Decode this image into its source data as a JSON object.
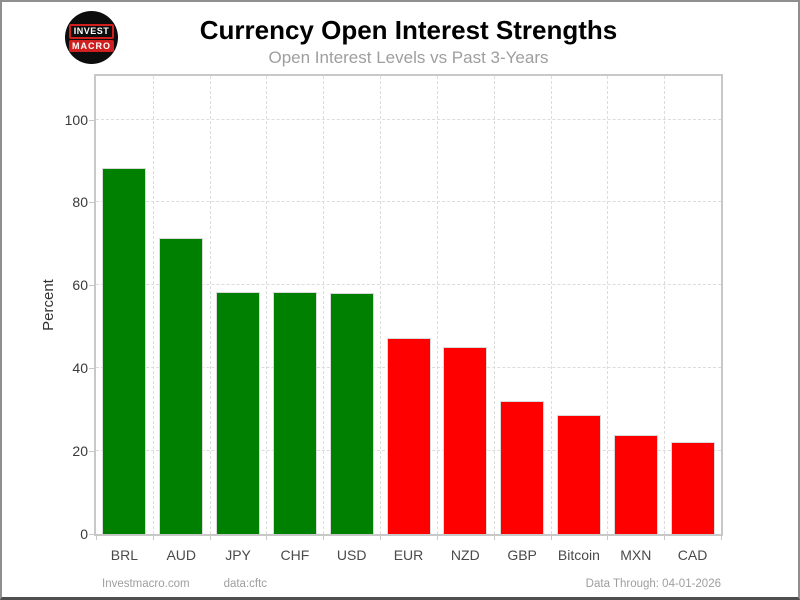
{
  "header": {
    "title": "Currency Open Interest Strengths",
    "subtitle": "Open Interest Levels vs Past 3-Years",
    "logo": {
      "line1": "INVEST",
      "line2": "MACRO"
    }
  },
  "chart_data": {
    "type": "bar",
    "title": "Currency Open Interest Strengths",
    "subtitle": "Open Interest Levels vs Past 3-Years",
    "categories": [
      "BRL",
      "AUD",
      "JPY",
      "CHF",
      "USD",
      "EUR",
      "NZD",
      "GBP",
      "Bitcoin",
      "MXN",
      "CAD"
    ],
    "values": [
      88.4,
      71.3,
      58.5,
      58.5,
      58.2,
      47.3,
      45.2,
      32.2,
      28.8,
      23.9,
      22.1
    ],
    "bar_colors": [
      "#008000",
      "#008000",
      "#008000",
      "#008000",
      "#008000",
      "#fe0000",
      "#fe0000",
      "#fe0000",
      "#fe0000",
      "#fe0000",
      "#fe0000"
    ],
    "xlabel": "",
    "ylabel": "Percent",
    "yticks": [
      0,
      20,
      40,
      60,
      80,
      100
    ],
    "ylim": [
      0,
      110.5
    ],
    "grid": "dashed",
    "legend_position": "none"
  },
  "colors": {
    "bar_green": "#008000",
    "bar_red": "#fe0000",
    "grid": "#dcdcdc",
    "plot_border": "#c8c8c8",
    "logo_red": "#d01f1f",
    "subtitle_gray": "#9e9e9e"
  },
  "footer": {
    "site": "Investmacro.com",
    "source": "data:cftc",
    "data_through": "Data Through: 04-01-2026"
  }
}
